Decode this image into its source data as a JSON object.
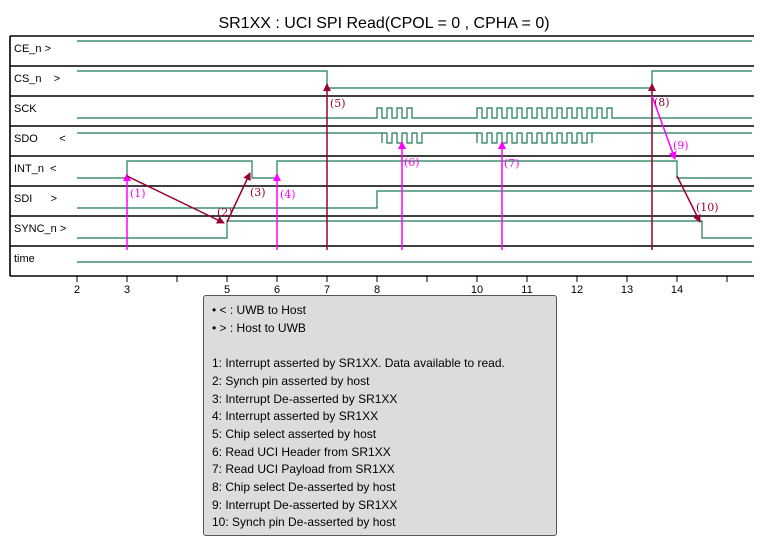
{
  "title": "SR1XX : UCI SPI Read(CPOL = 0 , CPHA = 0)",
  "signals": [
    {
      "key": "ce",
      "label": "CE_n >"
    },
    {
      "key": "cs",
      "label": "CS_n    >"
    },
    {
      "key": "sck",
      "label": "SCK"
    },
    {
      "key": "sdo",
      "label": "SDO       <"
    },
    {
      "key": "int",
      "label": "INT_n  <"
    },
    {
      "key": "sdi",
      "label": "SDI      >"
    },
    {
      "key": "sync",
      "label": "SYNC_n >"
    },
    {
      "key": "time",
      "label": "time"
    }
  ],
  "time_axis": {
    "range": [
      2,
      15.5
    ],
    "major_ticks": [
      2,
      3,
      5,
      6,
      7,
      8,
      10,
      11,
      12,
      13,
      14
    ],
    "minor_ticks": [
      4,
      9,
      15
    ]
  },
  "waveforms": {
    "ce": {
      "type": "level",
      "changes": [
        [
          2,
          1
        ]
      ]
    },
    "cs": {
      "type": "level",
      "changes": [
        [
          2,
          1
        ],
        [
          7,
          0
        ],
        [
          13.5,
          1
        ]
      ]
    },
    "sck": {
      "type": "clock",
      "bursts": [
        [
          8,
          8.8
        ],
        [
          10,
          12.7
        ]
      ],
      "period": 0.2
    },
    "sdo": {
      "type": "data",
      "idle": 1,
      "bursts": [
        [
          8.1,
          8.9
        ],
        [
          10,
          12.3
        ]
      ],
      "period": 0.2
    },
    "int": {
      "type": "level",
      "changes": [
        [
          2,
          0
        ],
        [
          3,
          1
        ],
        [
          5.5,
          0
        ],
        [
          6,
          1
        ],
        [
          14,
          0
        ]
      ]
    },
    "sdi": {
      "type": "level",
      "changes": [
        [
          2,
          0
        ],
        [
          8,
          1
        ]
      ]
    },
    "sync": {
      "type": "level",
      "changes": [
        [
          2,
          0
        ],
        [
          5,
          1
        ],
        [
          14.5,
          0
        ]
      ]
    }
  },
  "annotations": [
    {
      "id": "1",
      "label": "(1)"
    },
    {
      "id": "2",
      "label": "(2)"
    },
    {
      "id": "3",
      "label": "(3)"
    },
    {
      "id": "4",
      "label": "(4)"
    },
    {
      "id": "5",
      "label": "(5)"
    },
    {
      "id": "6",
      "label": "(6)"
    },
    {
      "id": "7",
      "label": "(7)"
    },
    {
      "id": "8",
      "label": "(8)"
    },
    {
      "id": "9",
      "label": "(9)"
    },
    {
      "id": "10",
      "label": "(10)"
    }
  ],
  "colors": {
    "wave": "#1a7a55",
    "magenta": "#ff00ff",
    "maroon": "#990033",
    "grid": "#000000",
    "legend_bg": "#dcdcdc"
  },
  "legend": {
    "direction_items": [
      "< : UWB to Host",
      "> : Host to UWB"
    ],
    "notes": [
      "1: Interrupt asserted by SR1XX. Data available to read.",
      "2: Synch pin asserted by host",
      "3: Interrupt De-asserted by SR1XX",
      "4: Interrupt asserted by SR1XX",
      "5: Chip select asserted by host",
      "6: Read UCI Header from SR1XX",
      "7: Read UCI Payload from SR1XX",
      "8: Chip select De-asserted by host",
      "9: Interrupt De-asserted by SR1XX",
      "10: Synch pin De-asserted by host"
    ]
  }
}
